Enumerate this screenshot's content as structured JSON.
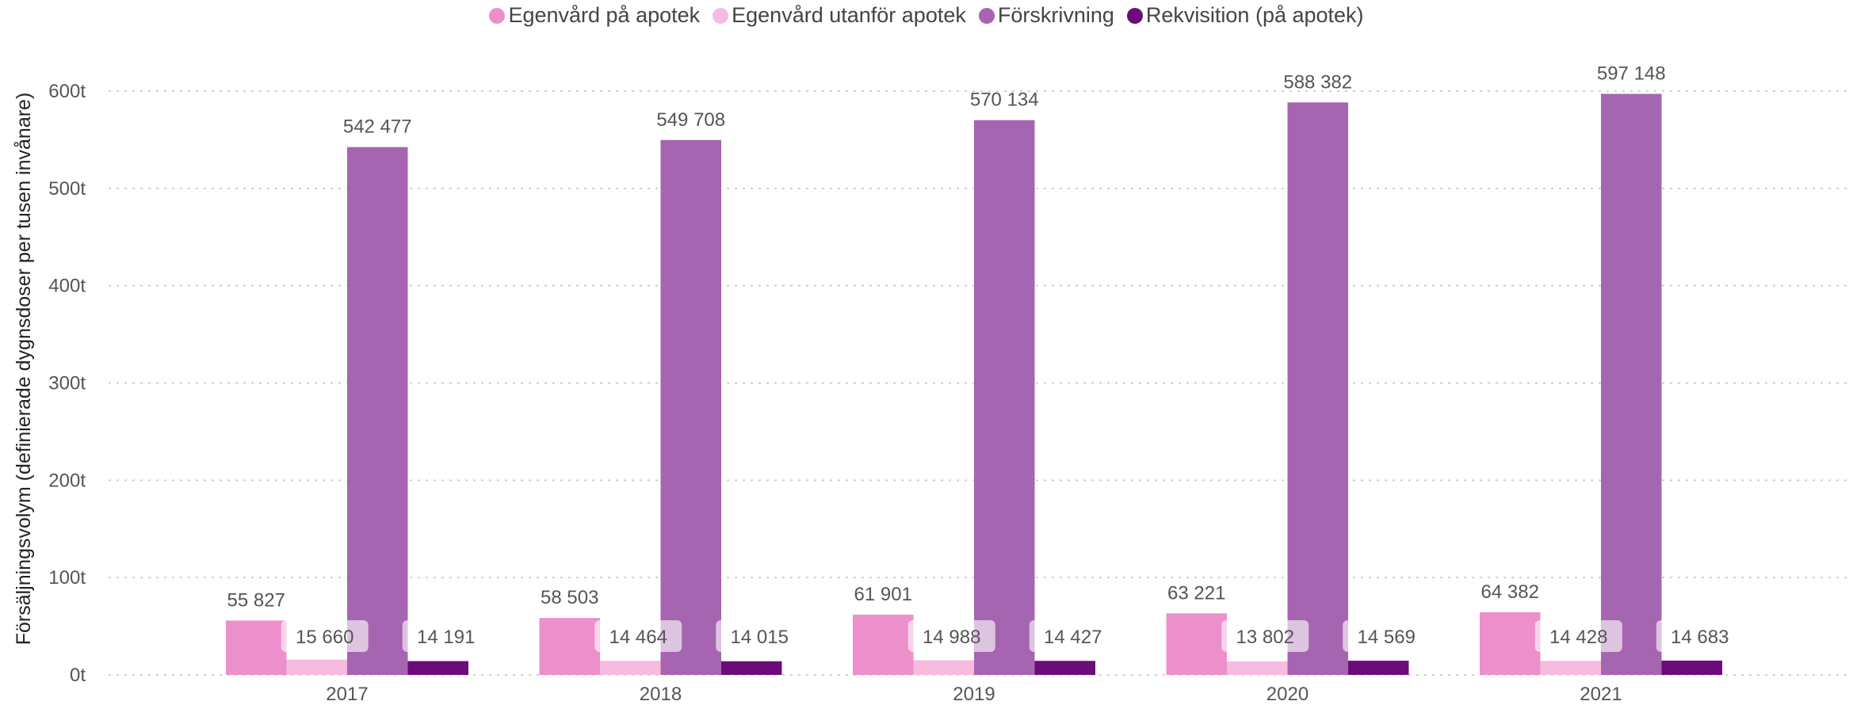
{
  "chart_data": {
    "type": "bar",
    "title": "",
    "xlabel": "",
    "ylabel": "Försäljningsvolym (definierade dygnsdoser per tusen invånare)",
    "ylim": [
      0,
      600000
    ],
    "yticks": [
      {
        "value": 0,
        "label": "0t"
      },
      {
        "value": 100000,
        "label": "100t"
      },
      {
        "value": 200000,
        "label": "200t"
      },
      {
        "value": 300000,
        "label": "300t"
      },
      {
        "value": 400000,
        "label": "400t"
      },
      {
        "value": 500000,
        "label": "500t"
      },
      {
        "value": 600000,
        "label": "600t"
      }
    ],
    "grid": true,
    "legend_position": "top",
    "categories": [
      "2017",
      "2018",
      "2019",
      "2020",
      "2021"
    ],
    "series": [
      {
        "name": "Egenvård på apotek",
        "color": "#ED8FCB",
        "values": [
          55827,
          58503,
          61901,
          63221,
          64382
        ],
        "labels": [
          "55 827",
          "58 503",
          "61 901",
          "63 221",
          "64 382"
        ]
      },
      {
        "name": "Egenvård utanför apotek",
        "color": "#F6BCE0",
        "values": [
          15660,
          14464,
          14988,
          13802,
          14428
        ],
        "labels": [
          "15 660",
          "14 464",
          "14 988",
          "13 802",
          "14 428"
        ]
      },
      {
        "name": "Förskrivning",
        "color": "#A665B0",
        "values": [
          542477,
          549708,
          570134,
          588382,
          597148
        ],
        "labels": [
          "542 477",
          "549 708",
          "570 134",
          "588 382",
          "597 148"
        ]
      },
      {
        "name": "Rekvisition (på apotek)",
        "color": "#6B0C7A",
        "values": [
          14191,
          14015,
          14427,
          14569,
          14683
        ],
        "labels": [
          "14 191",
          "14 015",
          "14 427",
          "14 569",
          "14 683"
        ]
      }
    ]
  }
}
